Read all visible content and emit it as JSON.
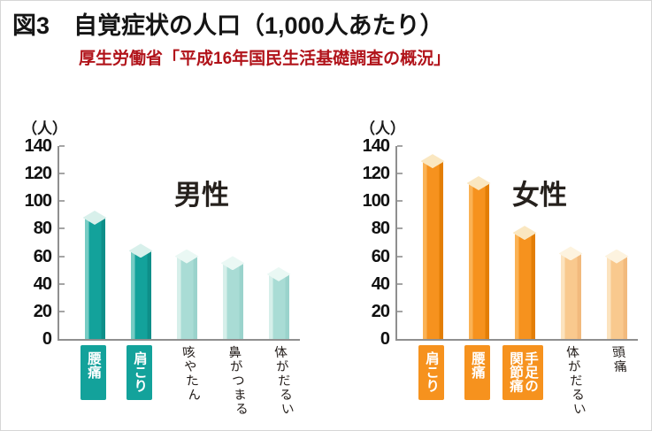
{
  "page": {
    "title": "図3　自覚症状の人口（1,000人あたり）",
    "source": "厚生労働省「平成16年国民生活基礎調査の概況」"
  },
  "colors": {
    "title_text": "#151515",
    "source_text": "#b1131a",
    "axis": "#8f8f8f",
    "palettes": {
      "teal": {
        "dark": {
          "left": "#76ccc4",
          "main": "#13a29b",
          "right": "#0e8f89",
          "cap": "#d8f0eb"
        },
        "light": {
          "left": "#d6efea",
          "main": "#a9dcd5",
          "right": "#9ad3cc",
          "cap": "#eaf8f4"
        },
        "box": "#13a29b"
      },
      "orange": {
        "dark": {
          "left": "#fbb254",
          "main": "#f6921e",
          "right": "#e37e06",
          "cap": "#fae7c1"
        },
        "light": {
          "left": "#fce3be",
          "main": "#f9c98e",
          "right": "#f2ba7d",
          "cap": "#fdf3df"
        },
        "box": "#f6921e"
      }
    }
  },
  "chart_data": [
    {
      "type": "bar",
      "group": "male",
      "title": "男性",
      "unit_label": "（人）",
      "ylim": [
        0,
        140
      ],
      "yticks": [
        140,
        120,
        100,
        80,
        60,
        40,
        20,
        0
      ],
      "grid": false,
      "legend": "none",
      "categories": [
        "腰痛",
        "肩こり",
        "咳やたん",
        "鼻がつまる",
        "体がだるい"
      ],
      "values": [
        88,
        64,
        60,
        55,
        47
      ],
      "highlighted": [
        true,
        true,
        false,
        false,
        false
      ],
      "palette": "teal"
    },
    {
      "type": "bar",
      "group": "female",
      "title": "女性",
      "unit_label": "（人）",
      "ylim": [
        0,
        140
      ],
      "yticks": [
        140,
        120,
        100,
        80,
        60,
        40,
        20,
        0
      ],
      "grid": false,
      "legend": "none",
      "categories": [
        "肩こり",
        "腰痛",
        "手足の関節痛",
        "体がだるい",
        "頭痛"
      ],
      "values": [
        129,
        113,
        77,
        62,
        60
      ],
      "highlighted": [
        true,
        true,
        true,
        false,
        false
      ],
      "palette": "orange"
    }
  ]
}
